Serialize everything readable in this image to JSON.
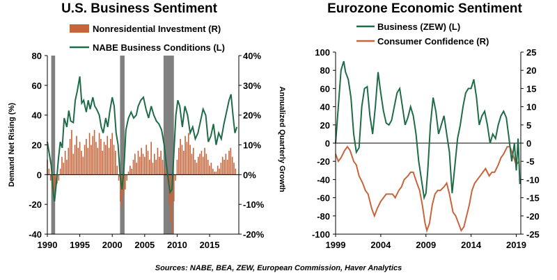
{
  "left_chart": {
    "title": "U.S. Business Sentiment",
    "ylabel_left": "Demand Net Rising (%)",
    "ylabel_right": "Annualized Quarterly Growth",
    "left_ticks": [
      "80",
      "60",
      "40",
      "20",
      "0",
      "-20",
      "-40"
    ],
    "right_ticks": [
      "40%",
      "30%",
      "20%",
      "10%",
      "0%",
      "-10%",
      "-20%"
    ],
    "x_ticks": [
      "1990",
      "1995",
      "2000",
      "2005",
      "2010",
      "2015"
    ],
    "legend": [
      "Nonresidential Investment (R)",
      "NABE Business Conditions (L)"
    ]
  },
  "right_chart": {
    "title": "Eurozone Economic Sentiment",
    "left_ticks": [
      "100",
      "80",
      "60",
      "40",
      "20",
      "0",
      "-20",
      "-40",
      "-60",
      "-80",
      "-100"
    ],
    "right_ticks": [
      "25",
      "20",
      "15",
      "10",
      "5",
      "0",
      "-5",
      "-10",
      "-15",
      "-20",
      "-25"
    ],
    "x_ticks": [
      "1999",
      "2004",
      "2009",
      "2014",
      "2019"
    ],
    "legend": [
      "Business (ZEW) (L)",
      "Consumer Confidence (R)"
    ]
  },
  "footer": "Sources: NABE, BEA, ZEW, European Commission, Haver Analytics",
  "colors": {
    "bar": "#c8643a",
    "green": "#1e6b48",
    "orange": "#c8643a",
    "recession": "#808080"
  },
  "chart_data": [
    {
      "type": "bar+line",
      "title": "U.S. Business Sentiment",
      "ylabel": "Demand Net Rising (%)",
      "y2label": "Annualized Quarterly Growth",
      "xlim": [
        1990,
        2019.5
      ],
      "ylim": [
        -40,
        80
      ],
      "y2lim": [
        -0.2,
        0.4
      ],
      "recessions": [
        [
          1990.6,
          1991.2
        ],
        [
          2001.2,
          2001.9
        ],
        [
          2007.9,
          2009.5
        ]
      ],
      "series": [
        {
          "name": "NABE Business Conditions (L)",
          "axis": "left",
          "x": [
            1990,
            1990.3,
            1990.6,
            1990.9,
            1991.1,
            1991.4,
            1991.7,
            1992,
            1992.3,
            1992.6,
            1993,
            1993.3,
            1993.6,
            1994,
            1994.3,
            1994.6,
            1995,
            1995.3,
            1995.6,
            1996,
            1996.3,
            1996.6,
            1997,
            1997.3,
            1997.6,
            1998,
            1998.3,
            1998.6,
            1999,
            1999.3,
            1999.6,
            2000,
            2000.3,
            2000.6,
            2000.9,
            2001.2,
            2001.5,
            2001.8,
            2002.1,
            2002.5,
            2002.9,
            2003.3,
            2003.7,
            2004,
            2004.4,
            2004.8,
            2005.2,
            2005.6,
            2006,
            2006.4,
            2006.8,
            2007.2,
            2007.6,
            2008,
            2008.3,
            2008.6,
            2008.9,
            2009.2,
            2009.5,
            2009.8,
            2010.1,
            2010.4,
            2010.8,
            2011.2,
            2011.6,
            2012,
            2012.4,
            2012.8,
            2013.2,
            2013.6,
            2014,
            2014.4,
            2014.8,
            2015.2,
            2015.6,
            2016,
            2016.4,
            2016.8,
            2017.2,
            2017.6,
            2018,
            2018.3,
            2018.6,
            2018.9,
            2019.2
          ],
          "y": [
            22,
            14,
            6,
            -12,
            -18,
            -5,
            10,
            22,
            18,
            38,
            32,
            43,
            36,
            35,
            50,
            56,
            66,
            48,
            50,
            42,
            50,
            44,
            52,
            46,
            44,
            40,
            32,
            28,
            38,
            32,
            42,
            52,
            46,
            28,
            20,
            0,
            -10,
            4,
            30,
            38,
            42,
            38,
            40,
            46,
            50,
            52,
            44,
            38,
            46,
            40,
            36,
            34,
            30,
            20,
            8,
            -2,
            -12,
            -10,
            15,
            40,
            50,
            46,
            32,
            46,
            40,
            28,
            32,
            24,
            28,
            36,
            44,
            40,
            22,
            26,
            34,
            20,
            28,
            24,
            34,
            42,
            50,
            54,
            40,
            28,
            32
          ]
        },
        {
          "name": "Nonresidential Investment (R)",
          "axis": "right",
          "type": "bar",
          "x": [
            1990,
            1990.25,
            1990.5,
            1990.75,
            1991,
            1991.25,
            1991.5,
            1991.75,
            1992,
            1992.25,
            1992.5,
            1992.75,
            1993,
            1993.25,
            1993.5,
            1993.75,
            1994,
            1994.25,
            1994.5,
            1994.75,
            1995,
            1995.25,
            1995.5,
            1995.75,
            1996,
            1996.25,
            1996.5,
            1996.75,
            1997,
            1997.25,
            1997.5,
            1997.75,
            1998,
            1998.25,
            1998.5,
            1998.75,
            1999,
            1999.25,
            1999.5,
            1999.75,
            2000,
            2000.25,
            2000.5,
            2000.75,
            2001,
            2001.25,
            2001.5,
            2001.75,
            2002,
            2002.25,
            2002.5,
            2002.75,
            2003,
            2003.25,
            2003.5,
            2003.75,
            2004,
            2004.25,
            2004.5,
            2004.75,
            2005,
            2005.25,
            2005.5,
            2005.75,
            2006,
            2006.25,
            2006.5,
            2006.75,
            2007,
            2007.25,
            2007.5,
            2007.75,
            2008,
            2008.25,
            2008.5,
            2008.75,
            2009,
            2009.25,
            2009.5,
            2009.75,
            2010,
            2010.25,
            2010.5,
            2010.75,
            2011,
            2011.25,
            2011.5,
            2011.75,
            2012,
            2012.25,
            2012.5,
            2012.75,
            2013,
            2013.25,
            2013.5,
            2013.75,
            2014,
            2014.25,
            2014.5,
            2014.75,
            2015,
            2015.25,
            2015.5,
            2015.75,
            2016,
            2016.25,
            2016.5,
            2016.75,
            2017,
            2017.25,
            2017.5,
            2017.75,
            2018,
            2018.25,
            2018.5,
            2018.75,
            2019
          ],
          "y": [
            0.05,
            0.02,
            -0.02,
            -0.05,
            -0.08,
            -0.06,
            -0.03,
            -0.02,
            0.02,
            0.06,
            0.04,
            0.08,
            0.05,
            0.09,
            0.12,
            0.15,
            0.07,
            0.1,
            0.13,
            0.09,
            0.11,
            0.08,
            0.06,
            0.1,
            0.12,
            0.09,
            0.14,
            0.1,
            0.13,
            0.15,
            0.11,
            0.09,
            0.14,
            0.12,
            0.08,
            0.11,
            0.1,
            0.13,
            0.09,
            0.12,
            0.14,
            0.1,
            0.08,
            0.03,
            -0.02,
            -0.09,
            -0.11,
            -0.07,
            -0.05,
            -0.02,
            0.01,
            0.03,
            0.02,
            0.05,
            0.07,
            0.04,
            0.08,
            0.06,
            0.09,
            0.07,
            0.06,
            0.1,
            0.08,
            0.05,
            0.11,
            0.04,
            0.07,
            0.05,
            0.09,
            0.06,
            0.08,
            0.05,
            0.03,
            0.01,
            -0.03,
            -0.1,
            -0.16,
            -0.2,
            -0.09,
            -0.02,
            0.05,
            0.09,
            0.12,
            0.1,
            0.08,
            0.13,
            0.11,
            0.14,
            0.1,
            0.07,
            0.09,
            0.05,
            0.04,
            0.06,
            0.07,
            0.08,
            0.06,
            0.09,
            0.07,
            0.05,
            0.03,
            0.04,
            0.02,
            0.01,
            0.01,
            0.03,
            0.02,
            0.04,
            0.06,
            0.05,
            0.07,
            0.05,
            0.08,
            0.09,
            0.06,
            0.04,
            0.02
          ]
        }
      ]
    },
    {
      "type": "line",
      "title": "Eurozone Economic Sentiment",
      "xlim": [
        1999,
        2019.5
      ],
      "ylim": [
        -100,
        100
      ],
      "y2lim": [
        -25,
        25
      ],
      "series": [
        {
          "name": "Business (ZEW) (L)",
          "axis": "left",
          "x": [
            1999,
            1999.3,
            1999.6,
            1999.9,
            2000.1,
            2000.4,
            2000.7,
            2001,
            2001.3,
            2001.6,
            2001.9,
            2002.2,
            2002.5,
            2002.8,
            2003.1,
            2003.4,
            2003.7,
            2004,
            2004.3,
            2004.6,
            2004.9,
            2005.2,
            2005.5,
            2005.8,
            2006.1,
            2006.4,
            2006.7,
            2007,
            2007.3,
            2007.6,
            2007.9,
            2008.2,
            2008.5,
            2008.8,
            2009,
            2009.2,
            2009.5,
            2009.8,
            2010.1,
            2010.4,
            2010.7,
            2011,
            2011.3,
            2011.6,
            2011.9,
            2012.2,
            2012.5,
            2012.8,
            2013.1,
            2013.4,
            2013.7,
            2014,
            2014.3,
            2014.6,
            2014.9,
            2015.2,
            2015.5,
            2015.8,
            2016.1,
            2016.4,
            2016.7,
            2017,
            2017.3,
            2017.6,
            2017.9,
            2018.2,
            2018.5,
            2018.8,
            2019,
            2019.2,
            2019.4
          ],
          "y": [
            0,
            40,
            80,
            90,
            78,
            70,
            50,
            10,
            -10,
            -5,
            40,
            60,
            62,
            30,
            10,
            40,
            78,
            55,
            35,
            22,
            20,
            25,
            40,
            55,
            60,
            40,
            20,
            28,
            40,
            30,
            10,
            -20,
            -40,
            -60,
            -55,
            -30,
            20,
            50,
            35,
            10,
            20,
            30,
            10,
            -10,
            -55,
            -25,
            5,
            20,
            40,
            55,
            60,
            60,
            70,
            50,
            20,
            30,
            35,
            20,
            0,
            10,
            5,
            20,
            30,
            35,
            28,
            5,
            -20,
            0,
            -30,
            5,
            -45
          ]
        },
        {
          "name": "Consumer Confidence (R)",
          "axis": "right",
          "x": [
            1999,
            1999.3,
            1999.6,
            2000,
            2000.3,
            2000.6,
            2001,
            2001.3,
            2001.6,
            2002,
            2002.3,
            2002.6,
            2003,
            2003.3,
            2003.6,
            2004,
            2004.3,
            2004.6,
            2005,
            2005.3,
            2005.6,
            2006,
            2006.3,
            2006.6,
            2007,
            2007.3,
            2007.6,
            2008,
            2008.3,
            2008.6,
            2008.9,
            2009.1,
            2009.4,
            2009.7,
            2010,
            2010.3,
            2010.6,
            2011,
            2011.3,
            2011.6,
            2012,
            2012.3,
            2012.6,
            2012.9,
            2013.2,
            2013.5,
            2013.8,
            2014.1,
            2014.4,
            2014.7,
            2015,
            2015.3,
            2015.6,
            2016,
            2016.3,
            2016.6,
            2017,
            2017.3,
            2017.6,
            2018,
            2018.3,
            2018.6,
            2019,
            2019.3
          ],
          "y": [
            -3,
            -5,
            -4,
            -2,
            -1,
            -2,
            -5,
            -6,
            -9,
            -11,
            -13,
            -14,
            -18,
            -20,
            -18,
            -16,
            -15,
            -14,
            -14,
            -14,
            -15,
            -13,
            -12,
            -10,
            -9,
            -8,
            -8,
            -11,
            -13,
            -17,
            -22,
            -24,
            -22,
            -17,
            -14,
            -13,
            -13,
            -12,
            -11,
            -14,
            -19,
            -20,
            -22,
            -24,
            -23,
            -20,
            -17,
            -13,
            -11,
            -10,
            -9,
            -8,
            -7,
            -9,
            -8,
            -8,
            -6,
            -4,
            -3,
            -1,
            -1,
            -3,
            -6,
            -5
          ]
        }
      ]
    }
  ]
}
